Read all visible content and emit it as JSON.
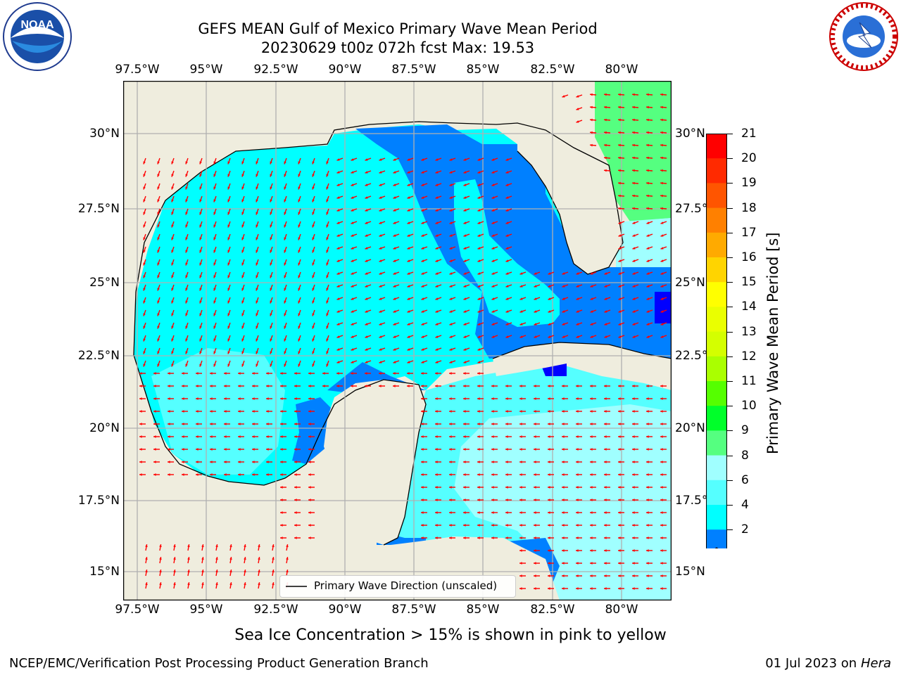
{
  "title": {
    "line1": "GEFS MEAN Gulf of Mexico Primary Wave Mean Period",
    "line2": "20230629 t00z 072h fcst   Max: 19.53"
  },
  "logos": {
    "noaa_text": "NOAA",
    "nws_text": "NATIONAL WEATHER SERVICE"
  },
  "map": {
    "lon_ticks": [
      "97.5°W",
      "95°W",
      "92.5°W",
      "90°W",
      "87.5°W",
      "85°W",
      "82.5°W",
      "80°W"
    ],
    "lat_ticks_left": [
      "30°N",
      "27.5°N",
      "25°N",
      "22.5°N",
      "20°N",
      "17.5°N",
      "15°N"
    ],
    "lat_ticks_right": [
      "30°N",
      "27.5°",
      "25°N",
      "22.5°",
      "20°N",
      "17.5°",
      "15°N"
    ],
    "legend_label": "Primary Wave Direction (unscaled)",
    "land_color": "#efedde",
    "arrow_color": "#ff0000"
  },
  "colorbar": {
    "label": "Primary Wave Mean Period [s]",
    "ticks": [
      "21",
      "20",
      "19",
      "18",
      "17",
      "16",
      "15",
      "14",
      "13",
      "12",
      "11",
      "10",
      "9",
      "8",
      "6",
      "4",
      "2"
    ],
    "colors": [
      "#ff0000",
      "#ff2a00",
      "#ff5500",
      "#ff8000",
      "#ffaa00",
      "#ffd400",
      "#ffff00",
      "#eaff00",
      "#d4ff00",
      "#aaff00",
      "#55ff00",
      "#00ff2a",
      "#55ff80",
      "#a0ffff",
      "#55ffff",
      "#00ffff",
      "#0080ff"
    ],
    "extend_color": "#0000ff"
  },
  "note": "Sea Ice Concentration > 15% is shown in pink to yellow",
  "footer": {
    "left": "NCEP/EMC/Verification Post Processing Product Generation Branch",
    "right_date": "01 Jul 2023 on ",
    "right_host": "Hera"
  }
}
